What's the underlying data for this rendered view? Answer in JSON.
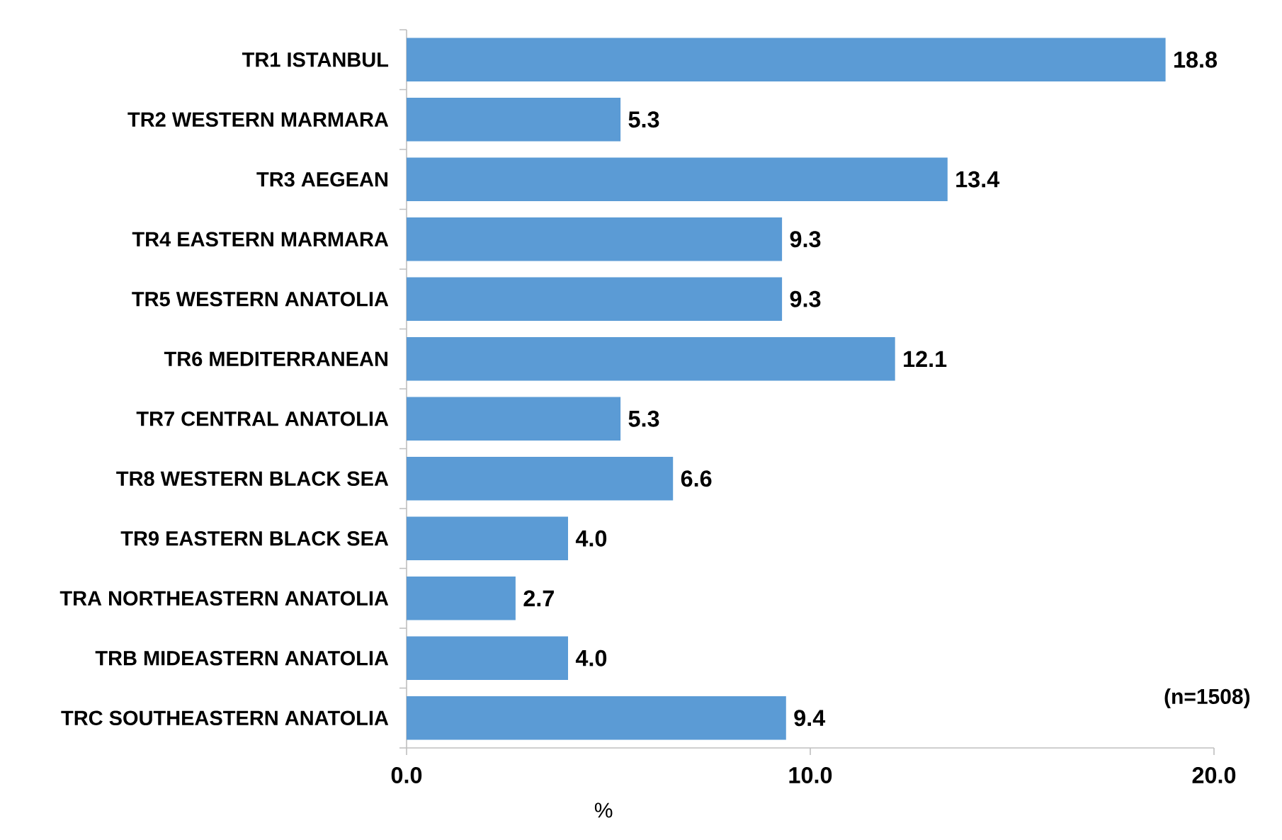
{
  "chart_data": {
    "type": "bar",
    "orientation": "horizontal",
    "categories": [
      "TR1 ISTANBUL",
      "TR2 WESTERN MARMARA",
      "TR3 AEGEAN",
      "TR4 EASTERN MARMARA",
      "TR5 WESTERN ANATOLIA",
      "TR6 MEDITERRANEAN",
      "TR7 CENTRAL ANATOLIA",
      "TR8 WESTERN BLACK SEA",
      "TR9 EASTERN BLACK SEA",
      "TRA NORTHEASTERN ANATOLIA",
      "TRB MIDEASTERN ANATOLIA",
      "TRC SOUTHEASTERN ANATOLIA"
    ],
    "values": [
      18.8,
      5.3,
      13.4,
      9.3,
      9.3,
      12.1,
      5.3,
      6.6,
      4.0,
      2.7,
      4.0,
      9.4
    ],
    "value_labels": [
      "18.8",
      "5.3",
      "13.4",
      "9.3",
      "9.3",
      "12.1",
      "5.3",
      "6.6",
      "4.0",
      "2.7",
      "4.0",
      "9.4"
    ],
    "color": "#5b9bd5",
    "xlabel": "%",
    "xlim": [
      0,
      20
    ],
    "xticks": [
      {
        "value": 0,
        "label": "0.0"
      },
      {
        "value": 10,
        "label": "10.0"
      },
      {
        "value": 20,
        "label": "20.0"
      }
    ],
    "annotations": [
      "(n=1508)"
    ]
  }
}
